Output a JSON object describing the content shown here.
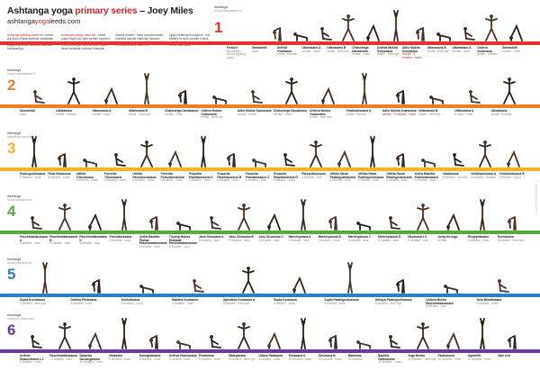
{
  "header": {
    "title_part1": "Ashtanga yoga",
    "title_part2": " primary series",
    "title_part3": " – Joey Miles",
    "website_a": "ashtanga",
    "website_b": "yoga",
    "website_c": "leeds.com"
  },
  "intro": [
    {
      "key": "Ashtanga opening chant",
      "text": "om · vande gurunam charanaravinde sandarsita svatma sukhava bodhe nihsreyase jangalikayamane samsara halahala mohasantyai"
    },
    {
      "key": "Ashtanga closing chant",
      "text": "om · svasti praja bhyah pari pala yantam nyayena margena mahim mahisah go brahmanebhyah subhamastu nityam lokah samastah sukhino bhavantu"
    },
    {
      "key": "",
      "text": "dhyana mantra · bahu purusha karam shankha cakrasi dharinam sahasra sirasam svetam pranamami patanjalim om shanti shanti shanti om"
    },
    {
      "key": "",
      "text": "ujjayi breathing throughout · five breaths in each posture unless stated · drishti gaze points noted below each pose"
    }
  ],
  "side_note": "© ashtangayogaleeds.com",
  "sections": [
    {
      "number": "1",
      "label": "Ashtanga",
      "sublabel": "surya namaskara A",
      "color": "#e5342f",
      "poses": [
        {
          "name": "Posture",
          "sub": "Breathing / Drishti (gazing point)"
        },
        {
          "name": "Samasthiti",
          "sub": "nose"
        },
        {
          "name": "Urdhva Vrksasana",
          "sub": "inhale · thumbs"
        },
        {
          "name": "Uttanasana A",
          "sub": "exhale · nose"
        },
        {
          "name": "Uttanasana B",
          "sub": "inhale · third eye"
        },
        {
          "name": "Chaturanga Dandasana",
          "sub": "exhale · nose"
        },
        {
          "name": "Urdhva Mukha Svanasana",
          "sub": "inhale · third eye"
        },
        {
          "name": "Adho Mukha Svanasana",
          "sub": "exhale · 5 breaths · navel",
          "key": true
        },
        {
          "name": "Uttanasana B",
          "sub": "inhale · third eye"
        },
        {
          "name": "Uttanasana A",
          "sub": "exhale · nose"
        },
        {
          "name": "Urdhva Vrksasana",
          "sub": "inhale · thumbs"
        },
        {
          "name": "Samasthiti",
          "sub": "exhale · nose"
        }
      ]
    },
    {
      "number": "2",
      "label": "Ashtanga",
      "sublabel": "surya namaskara B",
      "color": "#ef7d22",
      "poses": [
        {
          "name": "Samasthiti",
          "sub": "nose"
        },
        {
          "name": "Utkatasana",
          "sub": "inhale · thumbs"
        },
        {
          "name": "Uttanasana A",
          "sub": "exhale · nose"
        },
        {
          "name": "Uttanasana B",
          "sub": "inhale · third eye"
        },
        {
          "name": "Chaturanga Dandasana",
          "sub": "exhale · nose"
        },
        {
          "name": "Urdhva Mukha Svanasana",
          "sub": "inhale · third eye"
        },
        {
          "name": "Adho Mukha Svanasana",
          "sub": "exhale · navel"
        },
        {
          "name": "Chaturanga Dandasana",
          "sub": "exhale · nose"
        },
        {
          "name": "Urdhva Mukha Svanasana",
          "sub": "inhale · third eye"
        },
        {
          "name": "Virabhadrasana A",
          "sub": "inhale · thumbs"
        },
        {
          "name": "Adho Mukha Svanasana",
          "sub": "exhale · 5 breaths · navel",
          "key": true
        },
        {
          "name": "Uttanasana B",
          "sub": "inhale · third eye"
        },
        {
          "name": "Uttanasana A",
          "sub": "exhale · nose"
        },
        {
          "name": "Utkatasana",
          "sub": "inhale · thumbs"
        }
      ]
    },
    {
      "number": "3",
      "label": "Ashtanga",
      "sublabel": "standing sequence",
      "color": "#f2b422",
      "poses": [
        {
          "name": "Padangusthasana",
          "sub": "5 breaths · nose"
        },
        {
          "name": "Pada Hastasana",
          "sub": "5 breaths · nose"
        },
        {
          "name": "Utthita Trikonasana",
          "sub": "5 breaths · hand"
        },
        {
          "name": "Parivrtta Trikonasana",
          "sub": "5 breaths · hand"
        },
        {
          "name": "Utthita Parsvakonasana",
          "sub": "5 breaths · hand"
        },
        {
          "name": "Parivrtta Parsvakonasana",
          "sub": "5 breaths · hand"
        },
        {
          "name": "Prasarita Padottanasana A",
          "sub": "5 breaths · nose"
        },
        {
          "name": "Prasarita Padottanasana B",
          "sub": "5 breaths · nose"
        },
        {
          "name": "Prasarita Padottanasana C",
          "sub": "5 breaths · nose"
        },
        {
          "name": "Prasarita Padottanasana D",
          "sub": "5 breaths · nose"
        },
        {
          "name": "Parsvottanasana",
          "sub": "5 breaths · foot"
        },
        {
          "name": "Utthita Hasta Padangusthasana",
          "sub": "5 breaths · toes"
        },
        {
          "name": "Utthita Hasta Padangusthasana",
          "sub": "5 breaths · side"
        },
        {
          "name": "Utthita Hasta Padangusthasana",
          "sub": "5 breaths · toes"
        },
        {
          "name": "Ardha Baddha Padmottanasana",
          "sub": "5 breaths · nose"
        },
        {
          "name": "Utkatasana",
          "sub": "5 breaths · thumbs"
        },
        {
          "name": "Virabhadrasana A",
          "sub": "5 breaths · thumbs"
        },
        {
          "name": "Virabhadrasana B",
          "sub": "5 breaths · hand"
        }
      ]
    },
    {
      "number": "4",
      "label": "Ashtanga",
      "sublabel": "seated sequence",
      "color": "#5aa845",
      "poses": [
        {
          "name": "Paschimattanasana A",
          "sub": "5 breaths · toes"
        },
        {
          "name": "Paschimattanasana B",
          "sub": "5 breaths · toes"
        },
        {
          "name": "Paschimattanasana C",
          "sub": "5 breaths · toes"
        },
        {
          "name": "Purvottanasana",
          "sub": "5 breaths · nose"
        },
        {
          "name": "Ardha Baddha Padma Paschimattanasana",
          "sub": "5 breaths · toes"
        },
        {
          "name": "Tiryang Mukha Ekapada Paschimattanasana",
          "sub": "5 breaths · toes"
        },
        {
          "name": "Janu Sirsasana A",
          "sub": "5 breaths · toes"
        },
        {
          "name": "Janu Sirsasana B",
          "sub": "5 breaths · toes"
        },
        {
          "name": "Janu Sirsasana C",
          "sub": "5 breaths · toes"
        },
        {
          "name": "Marichyasana A",
          "sub": "5 breaths · toes"
        },
        {
          "name": "Marichyasana B",
          "sub": "5 breaths · nose"
        },
        {
          "name": "Marichyasana C",
          "sub": "5 breaths · side"
        },
        {
          "name": "Marichyasana D",
          "sub": "5 breaths · side"
        },
        {
          "name": "Navasana x 5",
          "sub": "5 breaths · toes"
        },
        {
          "name": "Jump through",
          "sub": "exhale"
        },
        {
          "name": "Bhujapidasana",
          "sub": "5 breaths · nose"
        },
        {
          "name": "Kurmasana",
          "sub": "5 breaths · third eye"
        }
      ]
    },
    {
      "number": "5",
      "label": "Ashtanga",
      "sublabel": "seated sequence",
      "color": "#2f7fc1",
      "poses": [
        {
          "name": "Supta Kurmasana",
          "sub": "5 breaths · third eye"
        },
        {
          "name": "Garbha Pindasana",
          "sub": "5 breaths · nose"
        },
        {
          "name": "Kukkutasana",
          "sub": "5 breaths · nose"
        },
        {
          "name": "Baddha Konasana",
          "sub": "5 breaths · nose"
        },
        {
          "name": "Upavishta Konasana A",
          "sub": "5 breaths · third eye"
        },
        {
          "name": "Supta Konasana",
          "sub": "5 breaths · nose"
        },
        {
          "name": "Supta Padangusthasana",
          "sub": "5 breaths · toes"
        },
        {
          "name": "Ubhaya Padangusthasana",
          "sub": "5 breaths · third eye"
        },
        {
          "name": "Urdhva Mukha Paschimattanasana",
          "sub": "5 breaths · toes"
        },
        {
          "name": "Setu Bandhasana",
          "sub": "5 breaths · nose"
        }
      ]
    },
    {
      "number": "6",
      "label": "Ashtanga",
      "sublabel": "finishing sequence",
      "color": "#6a3d9a",
      "poses": [
        {
          "name": "Urdhva Dhanurasana x 3",
          "sub": "5 breaths · nose"
        },
        {
          "name": "Paschimattanasana",
          "sub": "10 breaths · toes"
        },
        {
          "name": "Salamba Sarvangasana",
          "sub": "10 breaths · nose"
        },
        {
          "name": "Halasana",
          "sub": "8 breaths · nose"
        },
        {
          "name": "Karnapidasana",
          "sub": "8 breaths · nose"
        },
        {
          "name": "Urdhva Padmasana",
          "sub": "8 breaths · nose"
        },
        {
          "name": "Pindasana",
          "sub": "8 breaths · nose"
        },
        {
          "name": "Matsyasana",
          "sub": "8 breaths · third eye"
        },
        {
          "name": "Uttana Padasana",
          "sub": "8 breaths · nose"
        },
        {
          "name": "Sirsasana A",
          "sub": "25 breaths · nose"
        },
        {
          "name": "Sirsasana B",
          "sub": "10 breaths · nose"
        },
        {
          "name": "Balasana",
          "sub": "10 breaths"
        },
        {
          "name": "Baddha Padmasana",
          "sub": "10 breaths · nose"
        },
        {
          "name": "Yoga Mudra",
          "sub": "10 breaths · third eye"
        },
        {
          "name": "Padmasana",
          "sub": "10 breaths · nose"
        },
        {
          "name": "Utpluthih",
          "sub": "10 breaths · nose"
        },
        {
          "name": "Take rest",
          "sub": ""
        }
      ]
    }
  ]
}
